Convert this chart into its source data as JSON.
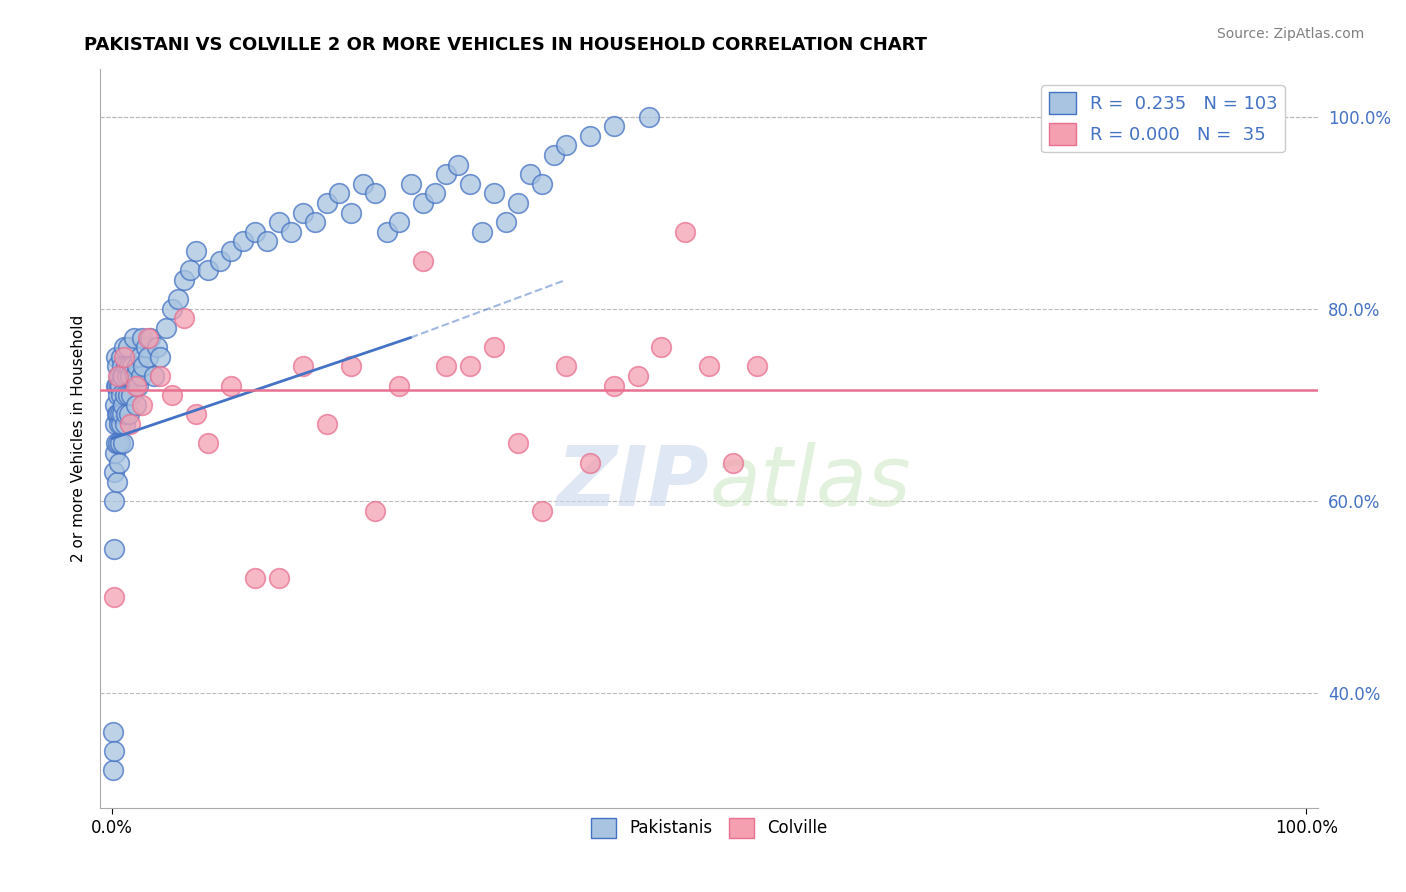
{
  "title": "PAKISTANI VS COLVILLE 2 OR MORE VEHICLES IN HOUSEHOLD CORRELATION CHART",
  "source": "Source: ZipAtlas.com",
  "ylabel": "2 or more Vehicles in Household",
  "color_blue": "#A8C4E0",
  "color_pink": "#F4A0B0",
  "trend_blue": "#4472C4",
  "trend_pink": "#E87090",
  "watermark_zip": "ZIP",
  "watermark_atlas": "atlas",
  "legend_r1": "R =  0.235",
  "legend_n1": "N = 103",
  "legend_r2": "R = 0.000",
  "legend_n2": "N =  35",
  "blue_x": [
    0.05,
    0.08,
    0.12,
    0.15,
    0.18,
    0.2,
    0.22,
    0.25,
    0.28,
    0.3,
    0.32,
    0.35,
    0.38,
    0.4,
    0.42,
    0.45,
    0.48,
    0.5,
    0.52,
    0.55,
    0.58,
    0.6,
    0.62,
    0.65,
    0.68,
    0.7,
    0.72,
    0.75,
    0.78,
    0.8,
    0.82,
    0.85,
    0.88,
    0.9,
    0.95,
    1.0,
    1.05,
    1.1,
    1.15,
    1.2,
    1.25,
    1.3,
    1.35,
    1.4,
    1.45,
    1.5,
    1.6,
    1.7,
    1.8,
    1.9,
    2.0,
    2.1,
    2.2,
    2.3,
    2.4,
    2.5,
    2.6,
    2.8,
    3.0,
    3.2,
    3.5,
    3.8,
    4.0,
    4.5,
    5.0,
    5.5,
    6.0,
    6.5,
    7.0,
    8.0,
    9.0,
    10.0,
    11.0,
    12.0,
    13.0,
    14.0,
    15.0,
    16.0,
    17.0,
    18.0,
    19.0,
    20.0,
    21.0,
    22.0,
    23.0,
    24.0,
    25.0,
    26.0,
    27.0,
    28.0,
    29.0,
    30.0,
    31.0,
    32.0,
    33.0,
    34.0,
    35.0,
    36.0,
    37.0,
    38.0,
    40.0,
    42.0,
    45.0
  ],
  "blue_y": [
    32.0,
    36.0,
    34.0,
    55.0,
    63.0,
    60.0,
    70.0,
    65.0,
    68.0,
    66.0,
    72.0,
    75.0,
    69.0,
    72.0,
    74.0,
    62.0,
    66.0,
    69.0,
    71.0,
    73.0,
    64.0,
    68.0,
    72.0,
    66.0,
    69.0,
    72.0,
    75.0,
    68.0,
    71.0,
    74.0,
    69.0,
    73.0,
    66.0,
    70.0,
    73.0,
    76.0,
    68.0,
    71.0,
    74.0,
    69.0,
    73.0,
    76.0,
    71.0,
    74.0,
    69.0,
    73.0,
    71.0,
    74.0,
    77.0,
    73.0,
    70.0,
    74.0,
    72.0,
    75.0,
    73.0,
    77.0,
    74.0,
    76.0,
    75.0,
    77.0,
    73.0,
    76.0,
    75.0,
    78.0,
    80.0,
    81.0,
    83.0,
    84.0,
    86.0,
    84.0,
    85.0,
    86.0,
    87.0,
    88.0,
    87.0,
    89.0,
    88.0,
    90.0,
    89.0,
    91.0,
    92.0,
    90.0,
    93.0,
    92.0,
    88.0,
    89.0,
    93.0,
    91.0,
    92.0,
    94.0,
    95.0,
    93.0,
    88.0,
    92.0,
    89.0,
    91.0,
    94.0,
    93.0,
    96.0,
    97.0,
    98.0,
    99.0,
    100.0
  ],
  "pink_x": [
    0.2,
    0.5,
    1.0,
    1.5,
    2.0,
    2.5,
    3.0,
    4.0,
    5.0,
    6.0,
    7.0,
    8.0,
    10.0,
    12.0,
    14.0,
    16.0,
    18.0,
    20.0,
    22.0,
    24.0,
    26.0,
    28.0,
    30.0,
    32.0,
    34.0,
    36.0,
    38.0,
    40.0,
    42.0,
    44.0,
    46.0,
    48.0,
    50.0,
    52.0,
    54.0
  ],
  "pink_y": [
    50.0,
    73.0,
    75.0,
    68.0,
    72.0,
    70.0,
    77.0,
    73.0,
    71.0,
    79.0,
    69.0,
    66.0,
    72.0,
    52.0,
    52.0,
    74.0,
    68.0,
    74.0,
    59.0,
    72.0,
    85.0,
    74.0,
    74.0,
    76.0,
    66.0,
    59.0,
    74.0,
    64.0,
    72.0,
    73.0,
    76.0,
    88.0,
    74.0,
    64.0,
    74.0
  ],
  "trend_line_x_start": 0.0,
  "trend_line_x_solid_end": 25.0,
  "trend_line_x_dashed_end": 38.0,
  "trend_line_y_start": 66.5,
  "trend_line_y_solid_end": 77.0,
  "trend_line_y_dashed_end": 83.0,
  "pink_line_y": 71.5,
  "xlim": [
    -1,
    101
  ],
  "ylim": [
    28,
    105
  ],
  "yticks": [
    40,
    60,
    80,
    100
  ],
  "ytick_labels": [
    "40.0%",
    "60.0%",
    "80.0%",
    "100.0%"
  ],
  "xtick_labels": [
    "0.0%",
    "100.0%"
  ]
}
